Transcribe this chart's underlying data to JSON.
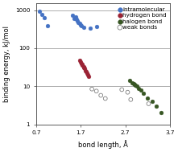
{
  "intramolecular": {
    "x": [
      0.78,
      0.83,
      0.88,
      0.95,
      1.52,
      1.55,
      1.58,
      1.6,
      1.63,
      1.65,
      1.68,
      1.7,
      1.72,
      1.76,
      1.92,
      2.05
    ],
    "y": [
      930,
      780,
      640,
      380,
      730,
      600,
      660,
      570,
      520,
      470,
      440,
      400,
      380,
      350,
      340,
      370
    ],
    "color": "#4472c4",
    "label": "intramolecular"
  },
  "hydrogen_bond": {
    "x": [
      1.68,
      1.7,
      1.72,
      1.73,
      1.74,
      1.76,
      1.77,
      1.78,
      1.8,
      1.82,
      1.84,
      1.86,
      1.88
    ],
    "y": [
      48,
      44,
      40,
      38,
      36,
      33,
      31,
      29,
      26,
      24,
      22,
      20,
      18
    ],
    "color": "#9b2335",
    "label": "hydrogen bond"
  },
  "halogen_bond": {
    "x": [
      2.8,
      2.85,
      2.88,
      2.9,
      2.92,
      2.95,
      3.0,
      3.05,
      3.1,
      3.2,
      3.3,
      3.4,
      3.5
    ],
    "y": [
      14,
      12.5,
      11.5,
      11.0,
      10.5,
      10.0,
      9.0,
      8.0,
      6.5,
      5.0,
      4.0,
      3.0,
      2.0
    ],
    "color": "#375623",
    "label": "halogen bond"
  },
  "weak_bonds": {
    "x": [
      1.95,
      2.05,
      2.15,
      2.25,
      2.62,
      2.75,
      2.82,
      3.22
    ],
    "y": [
      8.5,
      7.5,
      5.8,
      4.8,
      8.2,
      7.0,
      4.5,
      3.5
    ],
    "color": "#808080",
    "label": "weak bonds"
  },
  "xlim": [
    0.7,
    3.7
  ],
  "ylim": [
    1,
    1500
  ],
  "xlabel": "bond length, Å",
  "ylabel": "binding energy, kJ/mol",
  "hlines": [
    10,
    100,
    1000
  ],
  "hline_color": "#a0a0a0",
  "background_color": "#ffffff",
  "legend_fontsize": 5.2,
  "axis_fontsize": 6.0,
  "tick_fontsize": 5.2,
  "marker_size": 12
}
